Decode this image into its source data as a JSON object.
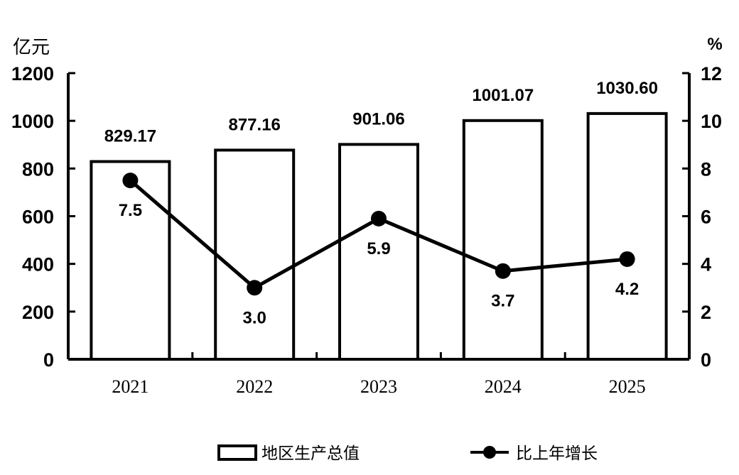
{
  "chart_data": {
    "type": "bar+line",
    "categories": [
      "2021",
      "2022",
      "2023",
      "2024",
      "2025"
    ],
    "y_left": {
      "unit": "亿元",
      "ylim": [
        0,
        1200
      ],
      "ticks": [
        0,
        200,
        400,
        600,
        800,
        1000,
        1200
      ]
    },
    "y_right": {
      "unit": "%",
      "ylim": [
        0,
        12
      ],
      "ticks": [
        0,
        2,
        4,
        6,
        8,
        10,
        12
      ]
    },
    "series": [
      {
        "name": "地区生产总值",
        "type": "bar",
        "axis": "left",
        "values": [
          829.17,
          877.16,
          901.06,
          1001.07,
          1030.6
        ],
        "labels": [
          "829.17",
          "877.16",
          "901.06",
          "1001.07",
          "1030.60"
        ]
      },
      {
        "name": "比上年增长",
        "type": "line",
        "axis": "right",
        "values": [
          7.5,
          3.0,
          5.9,
          3.7,
          4.2
        ],
        "labels": [
          "7.5",
          "3.0",
          "5.9",
          "3.7",
          "4.2"
        ]
      }
    ],
    "grid": false,
    "legend_position": "bottom"
  }
}
